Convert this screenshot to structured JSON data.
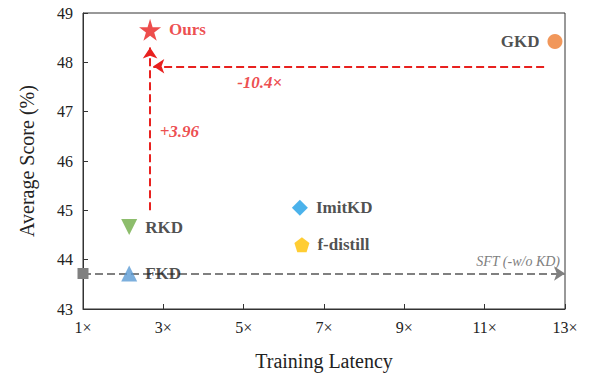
{
  "chart_data": {
    "type": "scatter",
    "xlabel": "Training Latency",
    "ylabel": "Average Score (%)",
    "xlim": [
      1,
      13
    ],
    "ylim": [
      43,
      49
    ],
    "xticks": [
      {
        "value": 1,
        "label": "1×"
      },
      {
        "value": 3,
        "label": "3×"
      },
      {
        "value": 5,
        "label": "5×"
      },
      {
        "value": 7,
        "label": "7×"
      },
      {
        "value": 9,
        "label": "9×"
      },
      {
        "value": 11,
        "label": "11×"
      },
      {
        "value": 13,
        "label": "13×"
      }
    ],
    "yticks": [
      43,
      44,
      45,
      46,
      47,
      48,
      49
    ],
    "grid": false,
    "series": [
      {
        "name": "Ours",
        "color": "#e8211f",
        "marker": "star",
        "values": [
          [
            2.67,
            48.66
          ]
        ]
      },
      {
        "name": "GKD",
        "color": "#ee7d31",
        "marker": "circle",
        "values": [
          [
            12.75,
            48.42
          ]
        ]
      },
      {
        "name": "RKD",
        "color": "#70ad47",
        "marker": "triangle-down",
        "values": [
          [
            2.15,
            44.66
          ]
        ]
      },
      {
        "name": "FKD",
        "color": "#5b9bd5",
        "marker": "triangle",
        "values": [
          [
            2.15,
            43.72
          ]
        ]
      },
      {
        "name": "ImitKD",
        "color": "#1e9fe6",
        "marker": "diamond",
        "values": [
          [
            6.4,
            45.05
          ]
        ]
      },
      {
        "name": "f-distill",
        "color": "#ffc000",
        "marker": "pentagon",
        "values": [
          [
            6.45,
            44.3
          ]
        ]
      }
    ],
    "reference_line": {
      "label": "SFT (-w/o KD)",
      "y": 43.72,
      "color": "#808080",
      "line_style": "dashed"
    },
    "annotations": [
      {
        "text": "-10.4×",
        "from": [
          12.48,
          47.92
        ],
        "to": [
          2.75,
          47.92
        ],
        "text_at": [
          5.4,
          47.6
        ],
        "color": "#e8211f",
        "line_style": "dashed"
      },
      {
        "text": "+3.96",
        "from": [
          2.67,
          45.0
        ],
        "to": [
          2.67,
          48.3
        ],
        "text_at": [
          3.4,
          46.6
        ],
        "color": "#e8211f",
        "line_style": "dashed"
      }
    ]
  }
}
